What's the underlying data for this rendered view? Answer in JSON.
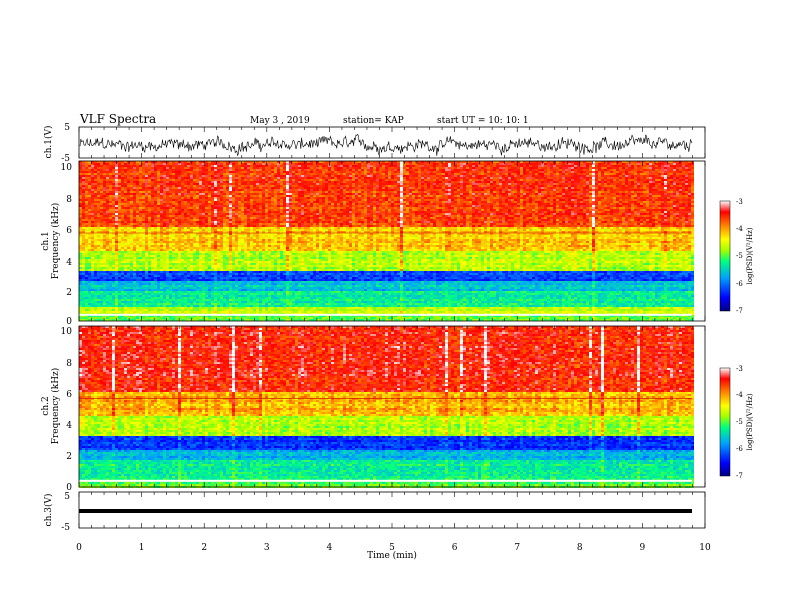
{
  "header": {
    "title": "VLF Spectra",
    "date": "May 3 , 2019",
    "station": "station= KAP",
    "start": "start UT = 10: 10: 1"
  },
  "colors": {
    "scale": [
      "#000080",
      "#0000ff",
      "#00a0ff",
      "#00ff80",
      "#a0ff00",
      "#ffff00",
      "#ff8000",
      "#ff0000",
      "#ffffff"
    ]
  },
  "chart_data": [
    {
      "type": "line",
      "panel": "ch1-waveform",
      "ylabel": "ch.1(V)",
      "ylim": [
        -5,
        5
      ],
      "yticks": [
        "5",
        "-5"
      ],
      "xlim": [
        0,
        10
      ],
      "description_values": "noisy broadband signal, roughly between -4 and 3 V"
    },
    {
      "type": "heatmap",
      "panel": "ch1-spectrogram",
      "ylabel": "ch.1\nFrequency (kHz)",
      "ylabel_top": "ch.1",
      "ylabel_bottom": "Frequency (kHz)",
      "ylim": [
        0,
        10
      ],
      "yticks": [
        "0",
        "2",
        "4",
        "6",
        "8",
        "10"
      ],
      "xlim": [
        0,
        10
      ],
      "colorbar": {
        "label": "log(PSD)(V²/Hz)",
        "range": [
          -7,
          -3
        ],
        "ticks": [
          "-3",
          "-4",
          "-5",
          "-6",
          "-7"
        ]
      },
      "bands_khz_level": [
        [
          0,
          0.5,
          -5.0
        ],
        [
          0.5,
          1.0,
          -4.6
        ],
        [
          1.0,
          2.0,
          -5.3
        ],
        [
          2.0,
          2.6,
          -5.6
        ],
        [
          2.6,
          3.2,
          -6.2
        ],
        [
          3.2,
          4.5,
          -4.7
        ],
        [
          4.5,
          6.0,
          -4.2
        ],
        [
          6.0,
          10.0,
          -3.6
        ]
      ]
    },
    {
      "type": "heatmap",
      "panel": "ch2-spectrogram",
      "ylabel": "ch.2\nFrequency (kHz)",
      "ylabel_top": "ch.2",
      "ylabel_bottom": "Frequency (kHz)",
      "ylim": [
        0,
        10
      ],
      "yticks": [
        "0",
        "2",
        "4",
        "6",
        "8",
        "10"
      ],
      "xlim": [
        0,
        10
      ],
      "colorbar": {
        "label": "log(PSD)(V²/Hz)",
        "range": [
          -7,
          -3
        ],
        "ticks": [
          "-3",
          "-4",
          "-5",
          "-6",
          "-7"
        ]
      },
      "bands_khz_level": [
        [
          0,
          0.5,
          -5.0
        ],
        [
          0.5,
          1.8,
          -5.3
        ],
        [
          1.8,
          2.3,
          -5.7
        ],
        [
          2.3,
          3.2,
          -6.3
        ],
        [
          3.2,
          4.5,
          -4.7
        ],
        [
          4.5,
          6.0,
          -4.1
        ],
        [
          6.0,
          10.0,
          -3.5
        ]
      ]
    },
    {
      "type": "line",
      "panel": "ch3-waveform",
      "ylabel": "ch.3(V)",
      "ylim": [
        -5,
        5
      ],
      "yticks": [
        "5",
        "-5"
      ],
      "xlim": [
        0,
        10
      ],
      "constant_value": 0
    }
  ],
  "xaxis": {
    "label": "Time (min)",
    "ticks": [
      "0",
      "1",
      "2",
      "3",
      "4",
      "5",
      "6",
      "7",
      "8",
      "9",
      "10"
    ]
  }
}
